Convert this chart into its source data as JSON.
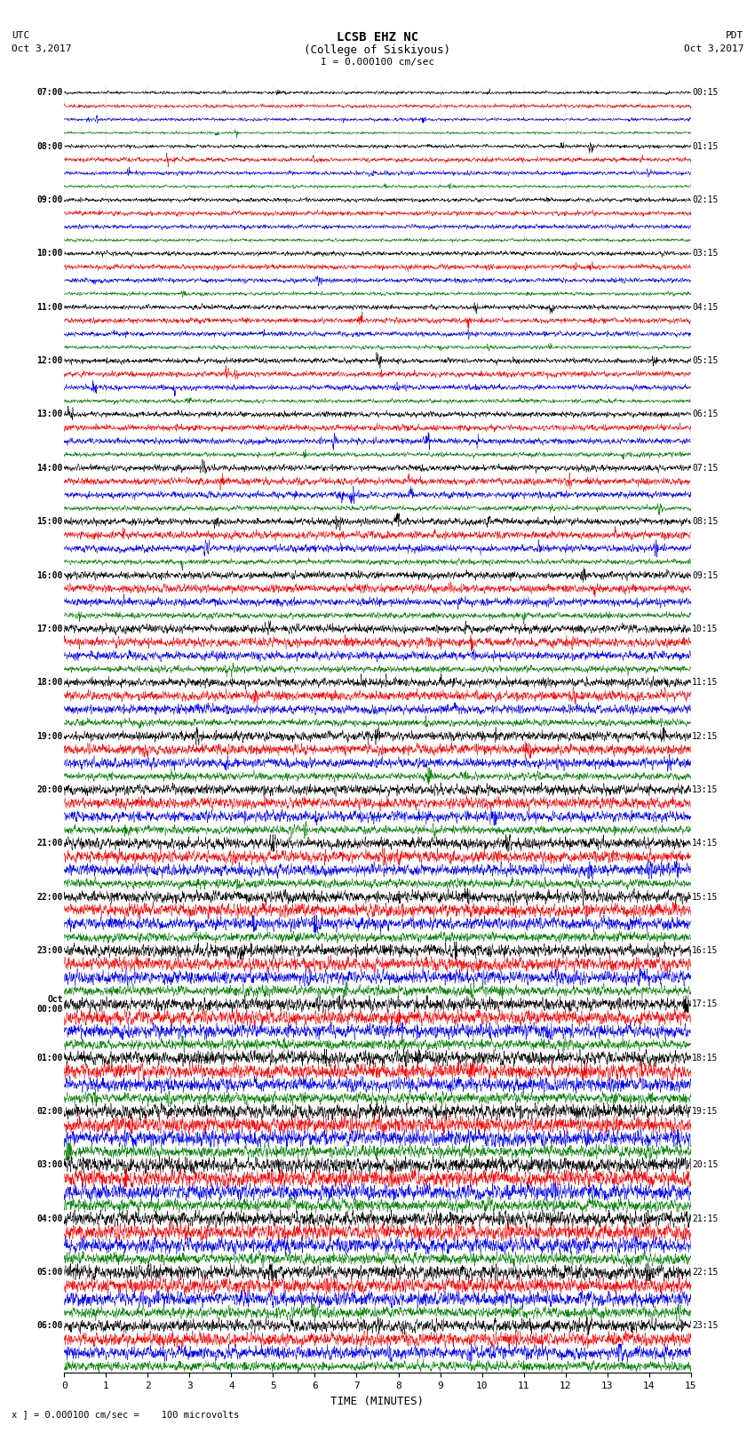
{
  "title_line1": "LCSB EHZ NC",
  "title_line2": "(College of Siskiyous)",
  "title_line3": "I = 0.000100 cm/sec",
  "left_header_line1": "UTC",
  "left_header_line2": "Oct 3,2017",
  "right_header_line1": "PDT",
  "right_header_line2": "Oct 3,2017",
  "xlabel": "TIME (MINUTES)",
  "bottom_note": "x ] = 0.000100 cm/sec =    100 microvolts",
  "xlim": [
    0,
    15
  ],
  "xticks": [
    0,
    1,
    2,
    3,
    4,
    5,
    6,
    7,
    8,
    9,
    10,
    11,
    12,
    13,
    14,
    15
  ],
  "colors": [
    "black",
    "red",
    "blue",
    "green"
  ],
  "left_labels": [
    "07:00",
    "",
    "",
    "",
    "08:00",
    "",
    "",
    "",
    "09:00",
    "",
    "",
    "",
    "10:00",
    "",
    "",
    "",
    "11:00",
    "",
    "",
    "",
    "12:00",
    "",
    "",
    "",
    "13:00",
    "",
    "",
    "",
    "14:00",
    "",
    "",
    "",
    "15:00",
    "",
    "",
    "",
    "16:00",
    "",
    "",
    "",
    "17:00",
    "",
    "",
    "",
    "18:00",
    "",
    "",
    "",
    "19:00",
    "",
    "",
    "",
    "20:00",
    "",
    "",
    "",
    "21:00",
    "",
    "",
    "",
    "22:00",
    "",
    "",
    "",
    "23:00",
    "",
    "",
    "",
    "Oct\n00:00",
    "",
    "",
    "",
    "01:00",
    "",
    "",
    "",
    "02:00",
    "",
    "",
    "",
    "03:00",
    "",
    "",
    "",
    "04:00",
    "",
    "",
    "",
    "05:00",
    "",
    "",
    "",
    "06:00",
    "",
    "",
    ""
  ],
  "right_labels": [
    "00:15",
    "",
    "",
    "",
    "01:15",
    "",
    "",
    "",
    "02:15",
    "",
    "",
    "",
    "03:15",
    "",
    "",
    "",
    "04:15",
    "",
    "",
    "",
    "05:15",
    "",
    "",
    "",
    "06:15",
    "",
    "",
    "",
    "07:15",
    "",
    "",
    "",
    "08:15",
    "",
    "",
    "",
    "09:15",
    "",
    "",
    "",
    "10:15",
    "",
    "",
    "",
    "11:15",
    "",
    "",
    "",
    "12:15",
    "",
    "",
    "",
    "13:15",
    "",
    "",
    "",
    "14:15",
    "",
    "",
    "",
    "15:15",
    "",
    "",
    "",
    "16:15",
    "",
    "",
    "",
    "17:15",
    "",
    "",
    "",
    "18:15",
    "",
    "",
    "",
    "19:15",
    "",
    "",
    "",
    "20:15",
    "",
    "",
    "",
    "21:15",
    "",
    "",
    "",
    "22:15",
    "",
    "",
    "",
    "23:15",
    "",
    "",
    ""
  ],
  "n_hours": 24,
  "traces_per_hour": 4,
  "bg_color": "white",
  "noise_seed": 42,
  "figsize": [
    8.5,
    16.13
  ],
  "dpi": 100,
  "amp_scales": {
    "black": 0.38,
    "red": 0.42,
    "blue": 0.4,
    "green": 0.3
  },
  "hour_activity": [
    1.0,
    1.2,
    1.3,
    1.4,
    1.5,
    1.6,
    1.8,
    2.0,
    2.2,
    2.4,
    2.6,
    2.8,
    3.0,
    3.2,
    3.5,
    3.8,
    4.0,
    4.2,
    4.5,
    4.8,
    5.0,
    4.8,
    4.5,
    4.0
  ]
}
